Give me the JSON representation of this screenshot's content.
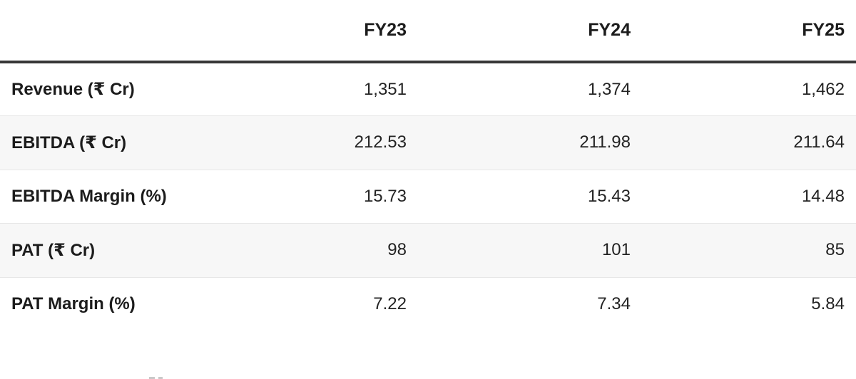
{
  "table": {
    "columns": [
      "",
      "FY23",
      "FY24",
      "FY25"
    ],
    "rows": [
      {
        "label": "Revenue (₹ Cr)",
        "values": [
          "1,351",
          "1,374",
          "1,462"
        ]
      },
      {
        "label": "EBITDA (₹ Cr)",
        "values": [
          "212.53",
          "211.98",
          "211.64"
        ]
      },
      {
        "label": "EBITDA Margin (%)",
        "values": [
          "15.73",
          "15.43",
          "14.48"
        ]
      },
      {
        "label": "PAT (₹ Cr)",
        "values": [
          "98",
          "101",
          "85"
        ]
      },
      {
        "label": "PAT Margin (%)",
        "values": [
          "7.22",
          "7.34",
          "5.84"
        ]
      }
    ]
  },
  "chart_data": {
    "type": "table",
    "title": "",
    "categories": [
      "FY23",
      "FY24",
      "FY25"
    ],
    "series": [
      {
        "name": "Revenue (₹ Cr)",
        "values": [
          1351,
          1374,
          1462
        ]
      },
      {
        "name": "EBITDA (₹ Cr)",
        "values": [
          212.53,
          211.98,
          211.64
        ]
      },
      {
        "name": "EBITDA Margin (%)",
        "values": [
          15.73,
          15.43,
          14.48
        ]
      },
      {
        "name": "PAT (₹ Cr)",
        "values": [
          98,
          101,
          85
        ]
      },
      {
        "name": "PAT Margin (%)",
        "values": [
          7.22,
          7.34,
          5.84
        ]
      }
    ],
    "layout": {
      "header_rule": "thick-dark",
      "row_striping": "alternate",
      "value_alignment": "right"
    }
  },
  "colors": {
    "header_rule": "#373737",
    "row_divider": "#e7e7e7",
    "stripe_row_bg": "#f7f7f7",
    "text": "#1c1c1c"
  }
}
